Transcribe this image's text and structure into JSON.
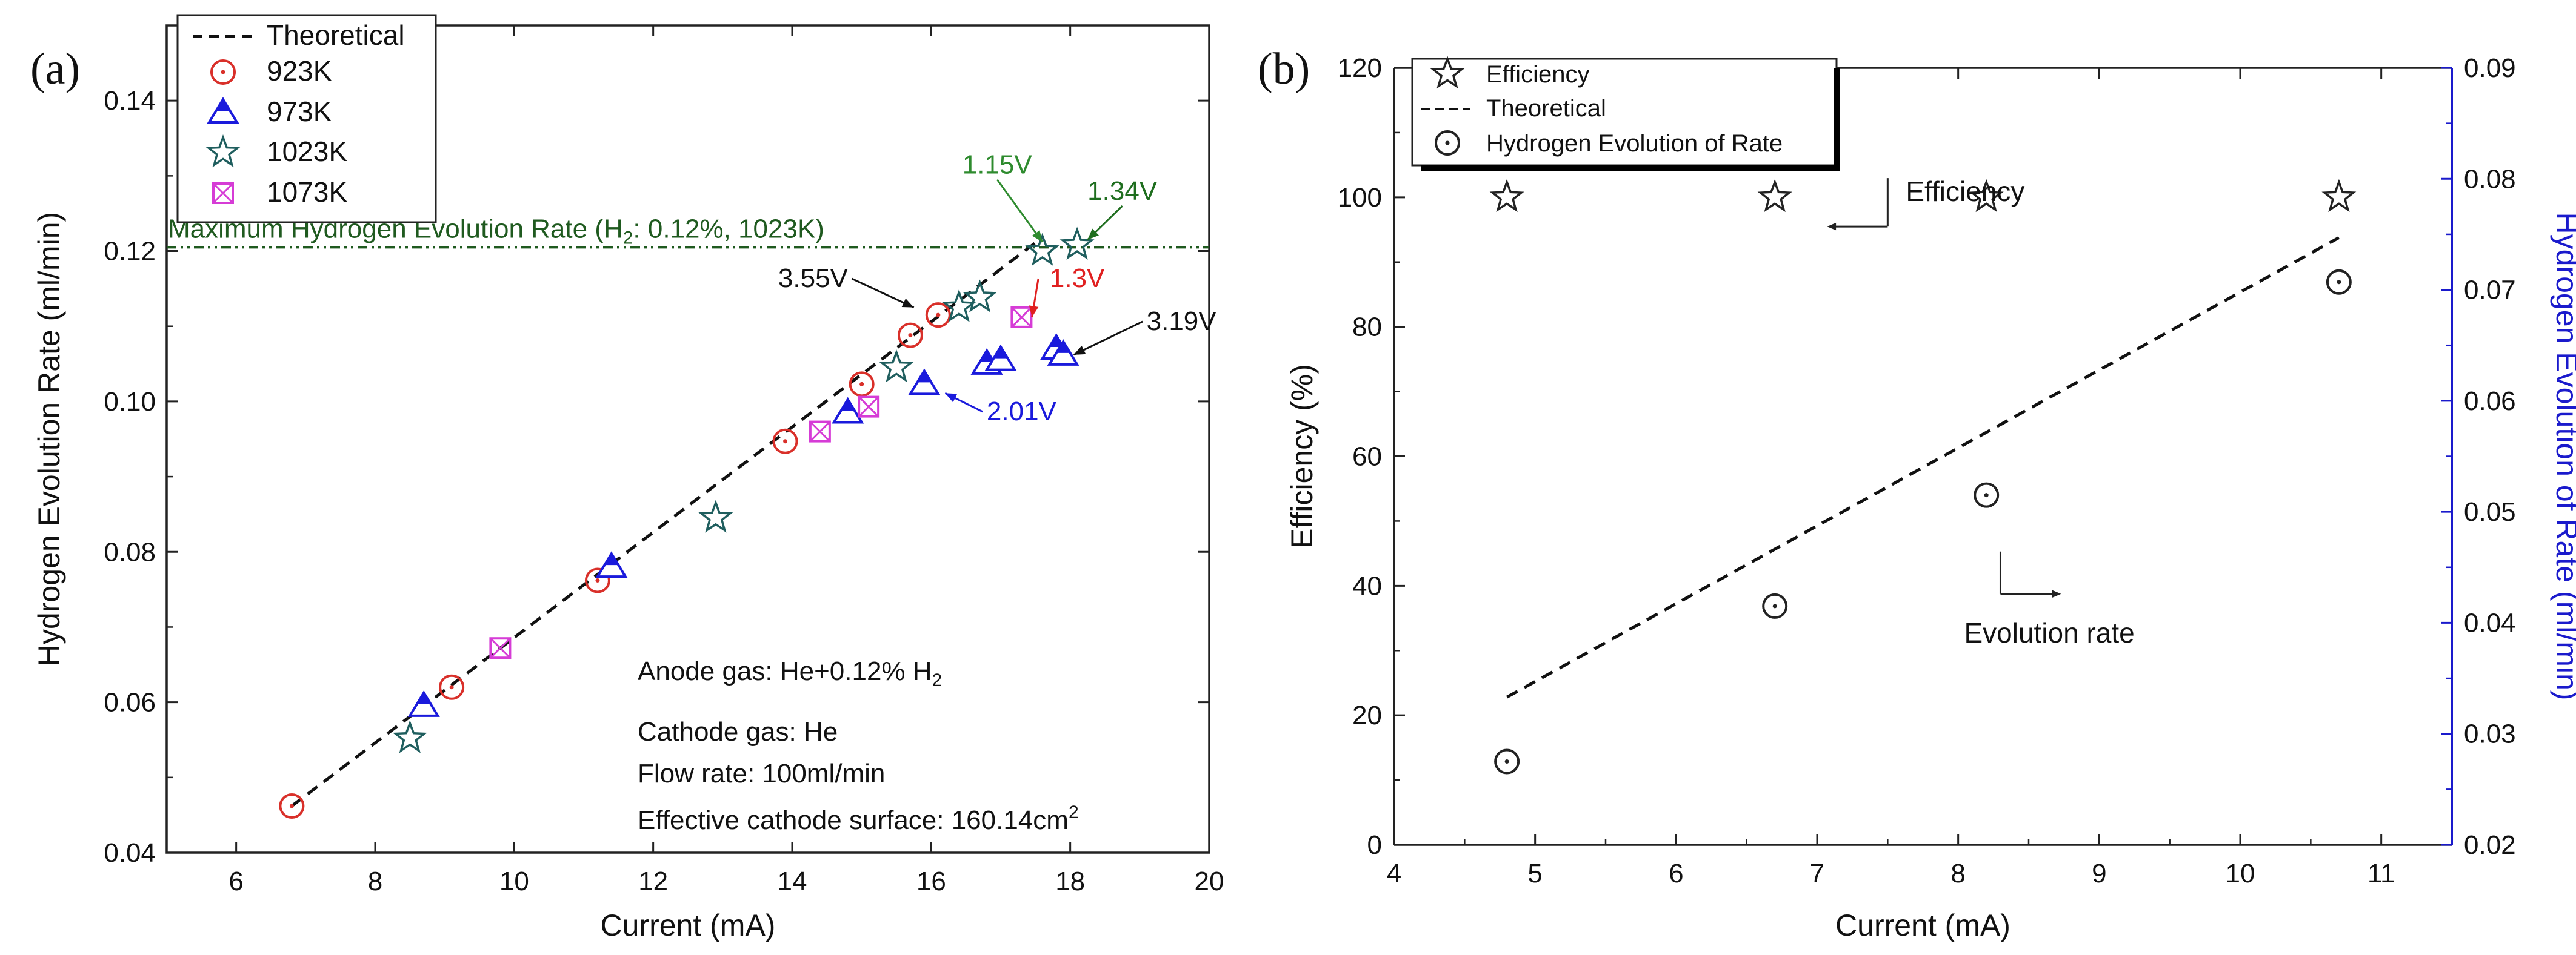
{
  "chart_data": [
    {
      "panel_label": "(a)",
      "type": "scatter",
      "title": "",
      "xlabel": "Current (mA)",
      "ylabel": "Hydrogen Evolution Rate (ml/min)",
      "xlim": [
        5,
        20
      ],
      "ylim": [
        0.04,
        0.15
      ],
      "xticks": [
        6,
        8,
        10,
        12,
        14,
        16,
        18,
        20
      ],
      "yticks": [
        0.04,
        0.06,
        0.08,
        0.1,
        0.12,
        0.14
      ],
      "ytick_labels": [
        "0.04",
        "0.06",
        "0.08",
        "0.10",
        "0.12",
        "0.14"
      ],
      "legend_position": "top-left",
      "theoretical_line": {
        "name": "Theoretical",
        "x": [
          6.8,
          17.6
        ],
        "y": [
          0.0462,
          0.1218
        ],
        "color": "#111111"
      },
      "max_line": {
        "label_pre": "Maximum Hydrogen Evolution Rate (H",
        "label_sub": "2",
        "label_post": ": 0.12%, 1023K)",
        "y": 0.1205,
        "color": "#1f5a1f"
      },
      "series": [
        {
          "name": "923K",
          "marker": "circle-dot",
          "color": "#d9302a",
          "x": [
            6.8,
            9.1,
            11.2,
            13.9,
            15.0,
            15.7,
            16.1
          ],
          "y": [
            0.0462,
            0.062,
            0.0762,
            0.0947,
            0.1023,
            0.1088,
            0.1115
          ]
        },
        {
          "name": "973K",
          "marker": "triangle-half",
          "color": "#1a1adc",
          "x": [
            8.7,
            11.4,
            14.8,
            15.9,
            16.8,
            17.0,
            17.8,
            17.9
          ],
          "y": [
            0.0595,
            0.078,
            0.0985,
            0.1023,
            0.105,
            0.1055,
            0.107,
            0.1062
          ]
        },
        {
          "name": "1023K",
          "marker": "star",
          "color": "#1f5e5e",
          "x": [
            8.5,
            12.9,
            15.5,
            16.4,
            16.7,
            17.6,
            18.1
          ],
          "y": [
            0.0552,
            0.0845,
            0.1045,
            0.1125,
            0.1138,
            0.12,
            0.1208
          ]
        },
        {
          "name": "1073K",
          "marker": "square-x",
          "color": "#d63cd6",
          "x": [
            9.8,
            14.4,
            15.1,
            17.3
          ],
          "y": [
            0.0672,
            0.096,
            0.0993,
            0.1112
          ]
        }
      ],
      "annotations": [
        {
          "text": "1.15V",
          "color": "#2e8b2e",
          "tx": 16.95,
          "ty": 0.1303,
          "ax": 17.6,
          "ay": 0.1212
        },
        {
          "text": "1.34V",
          "color": "#1f6e1f",
          "tx": 18.75,
          "ty": 0.1268,
          "ax": 18.25,
          "ay": 0.1215
        },
        {
          "text": "3.55V",
          "color": "#111111",
          "tx": 14.3,
          "ty": 0.1152,
          "ax": 15.75,
          "ay": 0.1125
        },
        {
          "text": "1.3V",
          "color": "#e02020",
          "tx": 18.1,
          "ty": 0.1152,
          "ax": 17.45,
          "ay": 0.1112
        },
        {
          "text": "3.19V",
          "color": "#111111",
          "tx": 19.6,
          "ty": 0.1095,
          "ax": 18.05,
          "ay": 0.1062
        },
        {
          "text": "2.01V",
          "color": "#1a1adc",
          "tx": 17.3,
          "ty": 0.0975,
          "ax": 16.2,
          "ay": 0.1011
        }
      ],
      "conditions": {
        "anode_pre": "Anode gas: He+0.12% H",
        "anode_sub": "2",
        "cathode": "Cathode gas: He",
        "flow": "Flow rate: 100ml/min",
        "surface_pre": "Effective cathode surface: 160.14cm",
        "surface_sup": "2"
      }
    },
    {
      "panel_label": "(b)",
      "type": "scatter",
      "title": "",
      "xlabel": "Current (mA)",
      "ylabel_left": "Efficiency (%)",
      "ylabel_right": "Hydrogen Evolution of Rate (ml/min)",
      "xlim": [
        4,
        11.5
      ],
      "ylim_left": [
        0,
        120
      ],
      "ylim_right": [
        0.02,
        0.09
      ],
      "xticks": [
        4,
        5,
        6,
        7,
        8,
        9,
        10,
        11
      ],
      "yticks_left": [
        0,
        20,
        40,
        60,
        80,
        100,
        120
      ],
      "yticks_right": [
        0.02,
        0.03,
        0.04,
        0.05,
        0.06,
        0.07,
        0.08,
        0.09
      ],
      "ytick_right_labels": [
        "0.02",
        "0.03",
        "0.04",
        "0.05",
        "0.06",
        "0.07",
        "0.08",
        "0.09"
      ],
      "right_axis_color": "#1a1acc",
      "legend_position": "top-left",
      "legend": [
        "Efficiency",
        "Theoretical",
        "Hydrogen Evolution of Rate"
      ],
      "efficiency": {
        "x": [
          4.8,
          6.7,
          8.2,
          10.7
        ],
        "y": [
          100,
          100,
          100,
          100
        ]
      },
      "rate": {
        "x": [
          4.8,
          6.7,
          8.2,
          10.7
        ],
        "y": [
          0.0275,
          0.0415,
          0.0515,
          0.0707
        ]
      },
      "theoretical": {
        "x": [
          4.8,
          10.7
        ],
        "y": [
          0.0333,
          0.0747
        ]
      },
      "arrows": [
        {
          "text": "Efficiency",
          "dir": "left",
          "x": 7.5,
          "y": 0.0757
        },
        {
          "text": "Evolution rate",
          "dir": "right",
          "x": 8.3,
          "y": 0.0426
        }
      ]
    }
  ]
}
